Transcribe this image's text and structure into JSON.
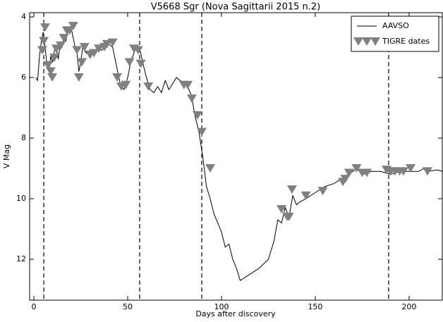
{
  "chart_data": {
    "type": "line",
    "title": "V5668 Sgr (Nova Sagittarii 2015 n.2)",
    "x_label": "Days after discovery",
    "y_label": "V Mag",
    "xlim": [
      -2.25,
      217.7
    ],
    "ylim": [
      13.35,
      3.86
    ],
    "y_inverted": true,
    "xticks": [
      0,
      50,
      100,
      150,
      200
    ],
    "yticks": [
      4,
      6,
      8,
      10,
      12
    ],
    "vlines": [
      5.3,
      56.4,
      89.5,
      189.1
    ],
    "legend": "upper right",
    "series": [
      {
        "name": "AAVSO",
        "color": "#000000",
        "style": "line",
        "x": [
          1,
          2,
          3,
          4,
          5,
          6,
          7,
          8,
          9,
          10,
          11,
          12,
          13,
          14,
          15,
          16,
          17,
          18,
          19,
          20,
          21,
          22,
          23,
          24,
          25,
          26,
          28,
          30,
          32,
          34,
          36,
          38,
          40,
          42,
          44,
          46,
          48,
          50,
          52,
          54,
          56,
          57,
          58,
          60,
          62,
          64,
          66,
          68,
          70,
          72,
          74,
          76,
          78,
          80,
          82,
          84,
          86,
          88,
          90,
          92,
          94,
          96,
          98,
          100,
          102,
          104,
          106,
          108,
          110,
          115,
          120,
          125,
          128,
          130,
          132,
          134,
          136,
          138,
          140,
          142,
          145,
          150,
          155,
          160,
          165,
          170,
          172,
          175,
          180,
          185,
          190,
          195,
          200,
          205,
          208,
          210,
          215,
          218
        ],
        "values": [
          6.0,
          6.1,
          5.3,
          4.8,
          4.5,
          5.0,
          5.6,
          5.8,
          5.3,
          5.5,
          5.1,
          5.0,
          5.4,
          4.9,
          5.0,
          4.7,
          4.8,
          4.5,
          4.5,
          4.4,
          4.7,
          5.0,
          5.2,
          5.8,
          5.5,
          5.0,
          5.2,
          5.1,
          5.2,
          5.0,
          5.1,
          5.0,
          4.9,
          5.0,
          5.6,
          6.2,
          6.4,
          6.0,
          5.4,
          5.1,
          5.0,
          5.2,
          5.5,
          6.0,
          6.4,
          6.5,
          6.3,
          6.5,
          6.1,
          6.4,
          6.2,
          6.0,
          6.1,
          6.2,
          6.3,
          6.6,
          7.3,
          7.8,
          8.6,
          9.6,
          10.0,
          10.5,
          10.8,
          11.1,
          11.6,
          11.5,
          12.0,
          12.3,
          12.7,
          12.5,
          12.3,
          12.0,
          11.4,
          10.7,
          10.8,
          10.3,
          10.6,
          9.9,
          10.2,
          10.1,
          10.0,
          9.8,
          9.6,
          9.5,
          9.3,
          9.1,
          9.0,
          9.2,
          9.1,
          9.1,
          9.2,
          9.1,
          9.1,
          9.1,
          9.0,
          9.1,
          9.05,
          9.1
        ]
      },
      {
        "name": "TIGRE dates",
        "color": "#808080",
        "style": "markers",
        "x": [
          4.5,
          5.3,
          6,
          7.5,
          9,
          9.8,
          10.9,
          12,
          14.3,
          16,
          17.6,
          19,
          21,
          23,
          24,
          25.6,
          27,
          30,
          32,
          34.6,
          37.6,
          39,
          42,
          44.4,
          46.6,
          49,
          51,
          53.4,
          55.6,
          57,
          61,
          80,
          82,
          84.2,
          87.2,
          89.5,
          94,
          132,
          135,
          136,
          137.6,
          145,
          154,
          164.7,
          166,
          168,
          172,
          175,
          177.5,
          188,
          190,
          192.5,
          195,
          197,
          200.8,
          209.8
        ],
        "values": [
          5.1,
          4.8,
          4.35,
          5.6,
          5.8,
          6.0,
          5.35,
          5.05,
          4.95,
          4.7,
          4.45,
          4.45,
          4.3,
          5.1,
          6.0,
          5.5,
          5.0,
          5.25,
          5.2,
          5.05,
          5.0,
          4.9,
          4.85,
          6.0,
          6.3,
          6.25,
          5.5,
          5.05,
          5.1,
          5.55,
          6.3,
          6.25,
          6.25,
          6.7,
          7.25,
          7.8,
          9.0,
          10.35,
          10.6,
          10.6,
          9.7,
          9.9,
          9.75,
          9.45,
          9.35,
          9.15,
          9.0,
          9.15,
          9.15,
          9.05,
          9.1,
          9.1,
          9.1,
          9.1,
          9.0,
          9.1
        ]
      }
    ]
  }
}
